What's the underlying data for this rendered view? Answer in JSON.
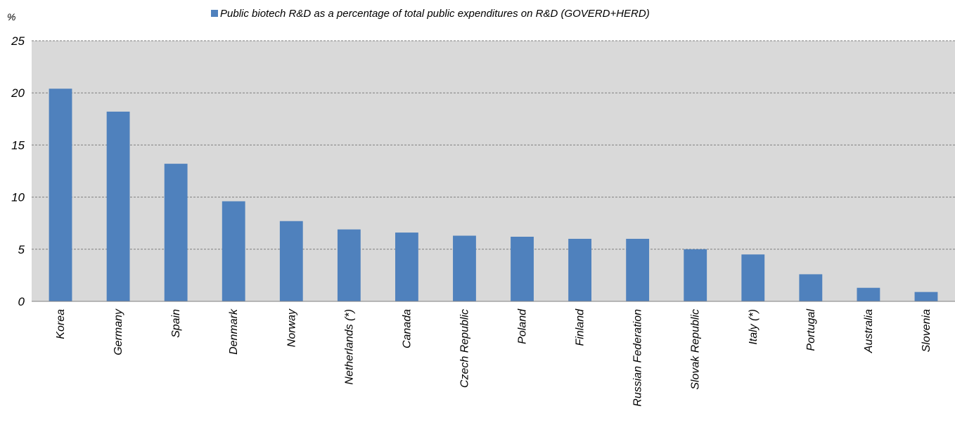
{
  "chart_data": {
    "type": "bar",
    "title": "",
    "ylabel": "%",
    "xlabel": "",
    "ylim": [
      0,
      25
    ],
    "yticks": [
      0,
      5,
      10,
      15,
      20,
      25
    ],
    "grid": true,
    "legend_position": "top-center",
    "categories": [
      "Korea",
      "Germany",
      "Spain",
      "Denmark",
      "Norway",
      "Netherlands (*)",
      "Canada",
      "Czech Republic",
      "Poland",
      "Finland",
      "Russian Federation",
      "Slovak Republic",
      "Italy (*)",
      "Portugal",
      "Australia",
      "Slovenia"
    ],
    "series": [
      {
        "name": "Public biotech R&D as a percentage of total public expenditures on R&D (GOVERD+HERD)",
        "color": "#4f81bd",
        "values": [
          20.4,
          18.2,
          13.2,
          9.6,
          7.7,
          6.9,
          6.6,
          6.3,
          6.2,
          6.0,
          6.0,
          5.0,
          4.5,
          2.6,
          1.3,
          0.9
        ]
      }
    ]
  },
  "colors": {
    "plot_background": "#d9d9d9",
    "bar": "#4f81bd",
    "grid": "#808080"
  }
}
